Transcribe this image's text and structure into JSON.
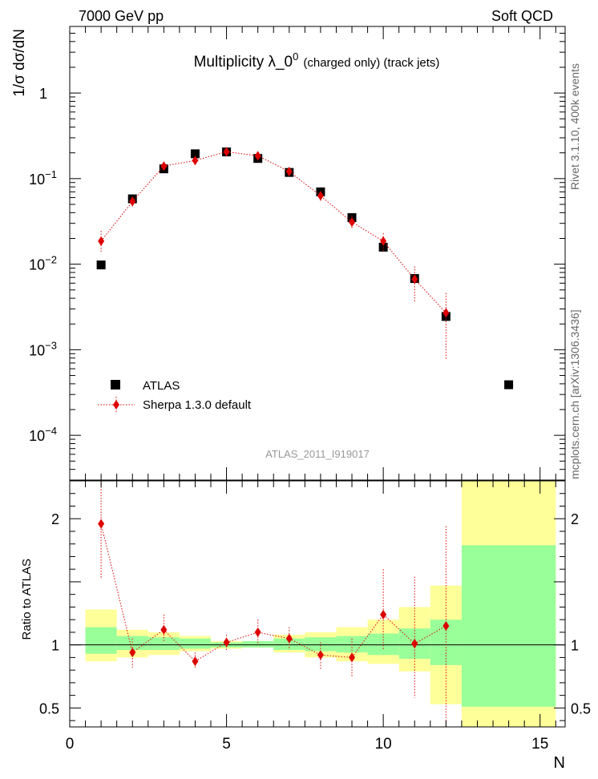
{
  "header": {
    "left_label": "7000 GeV pp",
    "right_label": "Soft QCD"
  },
  "side_text": {
    "rivet": "Rivet 3.1.10,  400k events",
    "mcplots": "mcplots.cern.ch [arXiv:1306.3436]"
  },
  "chart_data": [
    {
      "type": "scatter",
      "title_main": "Multiplicity  λ_0",
      "title_sup": "0",
      "title_suffix": "(charged only) (track jets)",
      "ylabel": "1/σ dσ/dN",
      "yscale": "log",
      "ylim": [
        3e-05,
        6
      ],
      "xlim": [
        0,
        15.8
      ],
      "watermark": "ATLAS_2011_I919017",
      "yticks": [
        {
          "value": 1,
          "base": "1",
          "exp": ""
        },
        {
          "value": 0.1,
          "base": "10",
          "exp": "−1"
        },
        {
          "value": 0.01,
          "base": "10",
          "exp": "−2"
        },
        {
          "value": 0.001,
          "base": "10",
          "exp": "−3"
        },
        {
          "value": 0.0001,
          "base": "10",
          "exp": "−4"
        }
      ],
      "legend": {
        "position": "lower-left",
        "entries": [
          "ATLAS",
          "Sherpa 1.3.0 default"
        ]
      },
      "series": [
        {
          "name": "ATLAS",
          "color": "#000000",
          "marker": "square",
          "x": [
            1,
            2,
            3,
            4,
            5,
            6,
            7,
            8,
            9,
            10,
            11,
            12,
            14
          ],
          "y": [
            0.0098,
            0.058,
            0.13,
            0.195,
            0.205,
            0.172,
            0.118,
            0.07,
            0.035,
            0.0158,
            0.0068,
            0.00245,
            0.00039
          ]
        },
        {
          "name": "Sherpa 1.3.0 default",
          "color": "#dd0000",
          "marker": "diamond",
          "x": [
            1,
            2,
            3,
            4,
            5,
            6,
            7,
            8,
            9,
            10,
            11,
            12
          ],
          "y": [
            0.0186,
            0.054,
            0.14,
            0.163,
            0.206,
            0.185,
            0.121,
            0.063,
            0.031,
            0.0186,
            0.0067,
            0.0027
          ],
          "err_lo": [
            0.0138,
            0.047,
            0.128,
            0.152,
            0.196,
            0.173,
            0.11,
            0.055,
            0.026,
            0.014,
            0.0036,
            0.00078
          ],
          "err_hi": [
            0.0245,
            0.061,
            0.15,
            0.174,
            0.217,
            0.197,
            0.131,
            0.071,
            0.037,
            0.023,
            0.0094,
            0.0046
          ]
        }
      ]
    },
    {
      "type": "scatter",
      "ylabel": "Ratio to ATLAS",
      "ylim": [
        0.35,
        2.3
      ],
      "xlim": [
        0,
        15.8
      ],
      "xlabel": "N",
      "xticks": [
        {
          "value": 0,
          "label": "0"
        },
        {
          "value": 5,
          "label": "5"
        },
        {
          "value": 10,
          "label": "10"
        },
        {
          "value": 15,
          "label": "15"
        }
      ],
      "yticks": [
        {
          "value": 0.5,
          "label": "0.5"
        },
        {
          "value": 1,
          "label": "1"
        },
        {
          "value": 2,
          "label": "2"
        }
      ],
      "bands": {
        "bins": [
          [
            0.5,
            1.5
          ],
          [
            1.5,
            2.5
          ],
          [
            2.5,
            3.5
          ],
          [
            3.5,
            4.5
          ],
          [
            4.5,
            5.5
          ],
          [
            5.5,
            6.5
          ],
          [
            6.5,
            7.5
          ],
          [
            7.5,
            8.5
          ],
          [
            8.5,
            9.5
          ],
          [
            9.5,
            10.5
          ],
          [
            10.5,
            11.5
          ],
          [
            11.5,
            12.5
          ],
          [
            12.5,
            15.5
          ]
        ],
        "stat_color": "#99ff99",
        "syst_color": "#ffff99",
        "inner": [
          [
            0.93,
            1.14
          ],
          [
            0.96,
            1.07
          ],
          [
            0.96,
            1.06
          ],
          [
            0.97,
            1.05
          ],
          [
            0.98,
            1.02
          ],
          [
            0.98,
            1.03
          ],
          [
            0.96,
            1.05
          ],
          [
            0.95,
            1.06
          ],
          [
            0.94,
            1.07
          ],
          [
            0.92,
            1.09
          ],
          [
            0.89,
            1.13
          ],
          [
            0.84,
            1.2
          ],
          [
            0.51,
            1.79
          ]
        ],
        "outer": [
          [
            0.87,
            1.28
          ],
          [
            0.9,
            1.12
          ],
          [
            0.92,
            1.1
          ],
          [
            0.95,
            1.07
          ],
          [
            0.97,
            1.03
          ],
          [
            0.98,
            1.03
          ],
          [
            0.94,
            1.08
          ],
          [
            0.9,
            1.1
          ],
          [
            0.87,
            1.14
          ],
          [
            0.85,
            1.2
          ],
          [
            0.79,
            1.3
          ],
          [
            0.53,
            1.47
          ],
          [
            0.35,
            2.3
          ]
        ]
      },
      "series": [
        {
          "name": "Sherpa 1.3.0 default",
          "color": "#dd0000",
          "marker": "diamond",
          "x": [
            1,
            2,
            3,
            4,
            5,
            6,
            7,
            8,
            9,
            10,
            11,
            12
          ],
          "y": [
            1.96,
            0.94,
            1.12,
            0.87,
            1.02,
            1.1,
            1.05,
            0.92,
            0.9,
            1.24,
            1.01,
            1.15
          ],
          "err_lo": [
            1.52,
            0.82,
            1.02,
            0.81,
            0.96,
            1.0,
            0.96,
            0.81,
            0.74,
            0.96,
            0.58,
            0.35
          ],
          "err_hi": [
            2.34,
            1.05,
            1.24,
            0.94,
            1.08,
            1.2,
            1.14,
            1.02,
            1.05,
            1.6,
            1.54,
            1.94
          ]
        }
      ],
      "reference_line": 1
    }
  ]
}
